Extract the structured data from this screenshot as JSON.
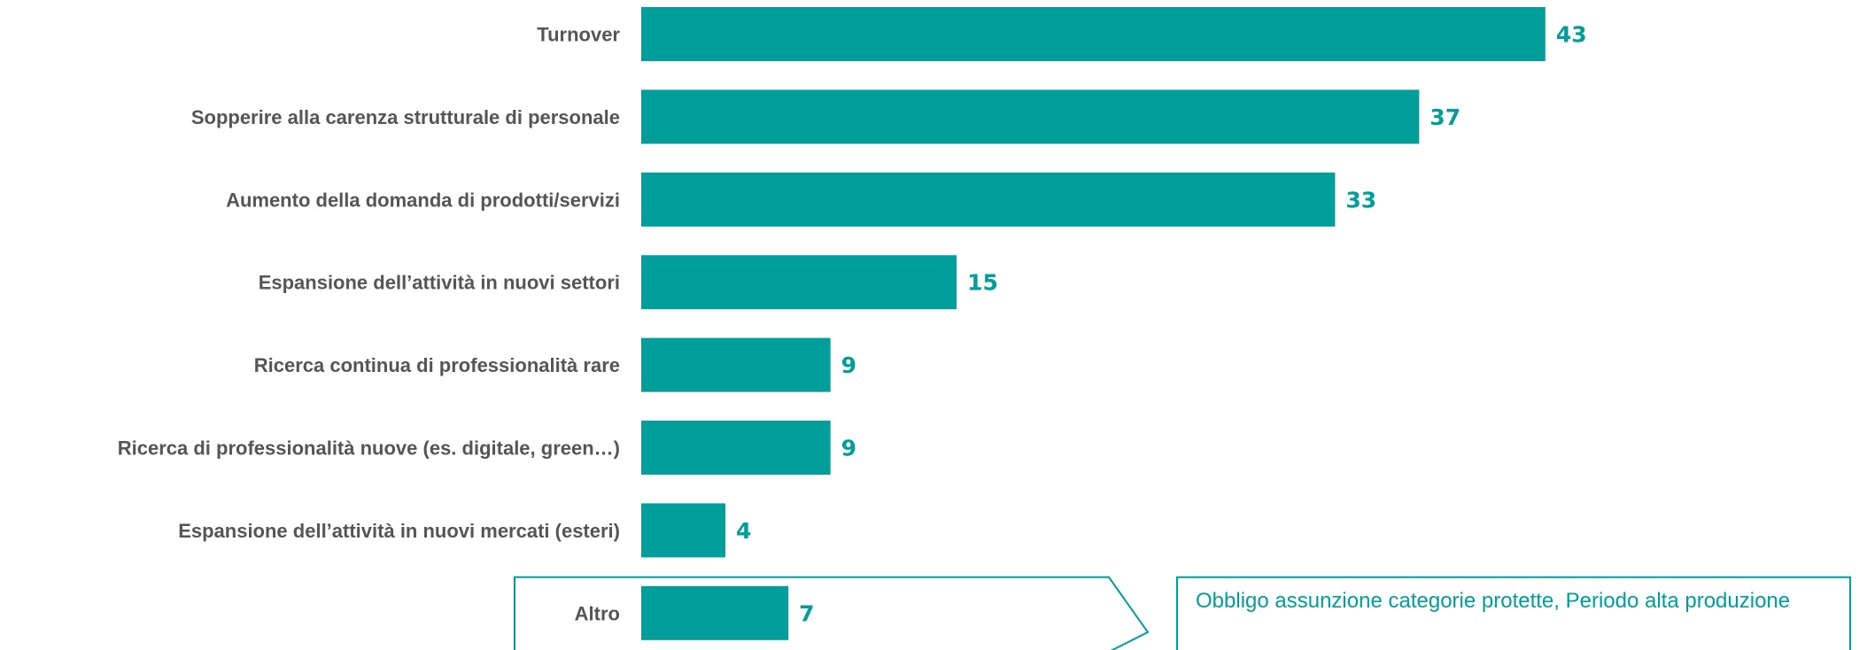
{
  "chart_data": {
    "type": "bar",
    "orientation": "horizontal",
    "categories": [
      "Turnover",
      "Sopperire alla carenza strutturale di personale",
      "Aumento della domanda di prodotti/servizi",
      "Espansione dell’attività in nuovi settori",
      "Ricerca continua di professionalità rare",
      "Ricerca di professionalità nuove (es. digitale, green…)",
      "Espansione dell’attività in nuovi mercati (esteri)",
      "Altro"
    ],
    "values": [
      43,
      37,
      33,
      15,
      9,
      9,
      4,
      7
    ],
    "xlim": [
      0,
      45
    ],
    "grid": false,
    "legend": "none",
    "bar_color": "#009E9A",
    "label_color": "#009E9A",
    "category_label_color": "#555555"
  },
  "callout": {
    "text": "Obbligo assunzione categorie protette, Periodo alta produzione",
    "border_color": "#009E9A",
    "text_color": "#009E9A"
  }
}
